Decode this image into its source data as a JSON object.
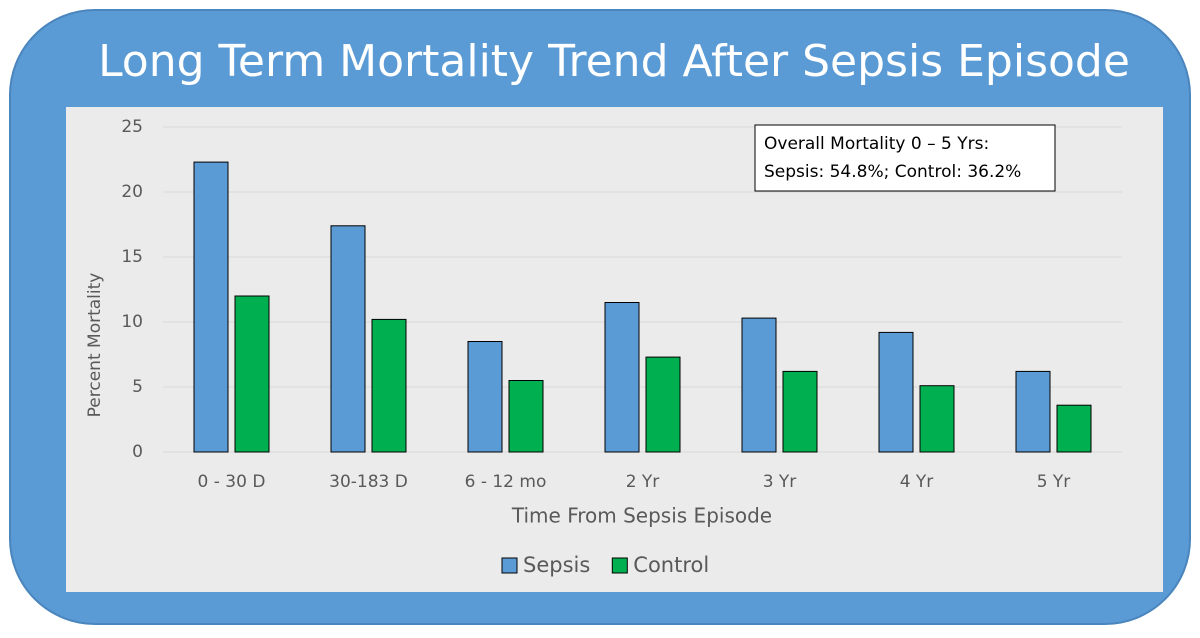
{
  "chart_data": {
    "type": "bar",
    "title": "Long Term Mortality Trend After Sepsis Episode",
    "categories": [
      "0 - 30 D",
      "30-183 D",
      "6 - 12 mo",
      "2 Yr",
      "3 Yr",
      "4 Yr",
      "5 Yr"
    ],
    "series": [
      {
        "name": "Sepsis",
        "color": "#5b9bd5",
        "values": [
          22.3,
          17.4,
          8.5,
          11.5,
          10.3,
          9.2,
          6.2
        ]
      },
      {
        "name": "Control",
        "color": "#00b050",
        "values": [
          12.0,
          10.2,
          5.5,
          7.3,
          6.2,
          5.1,
          3.6
        ]
      }
    ],
    "ylim": [
      0,
      25
    ],
    "yticks": [
      0,
      5,
      10,
      15,
      20,
      25
    ],
    "grid": true,
    "x_label": "Time From Sepsis Episode",
    "y_label": "Percent Mortality",
    "legend": "bottom",
    "annotations": [
      "Overall Mortality 0 – 5 Yrs:",
      "Sepsis: 54.8%; Control: 36.2%"
    ]
  }
}
